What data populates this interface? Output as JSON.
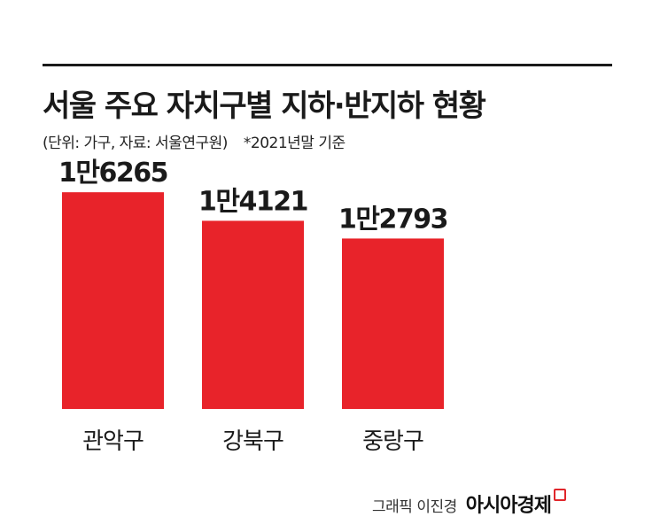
{
  "title": "서울 주요 자치구별 지하·반지하 현황",
  "subtitle": "(단위: 가구, 자료: 서울연구원)",
  "note": "*2021년말 기준",
  "colors": {
    "bar": "#e8232a",
    "text": "#1a1a1a",
    "rule": "#1a1a1a"
  },
  "chart_data": {
    "type": "bar",
    "categories": [
      "관악구",
      "강북구",
      "중랑구"
    ],
    "values": [
      16265,
      14121,
      12793
    ],
    "value_labels": [
      "1만6265",
      "1만4121",
      "1만2793"
    ],
    "ylim": [
      0,
      19000
    ],
    "grid": false,
    "legend": "none"
  },
  "footer": {
    "credit": "그래픽 이진경",
    "brand": "아시아경제"
  }
}
